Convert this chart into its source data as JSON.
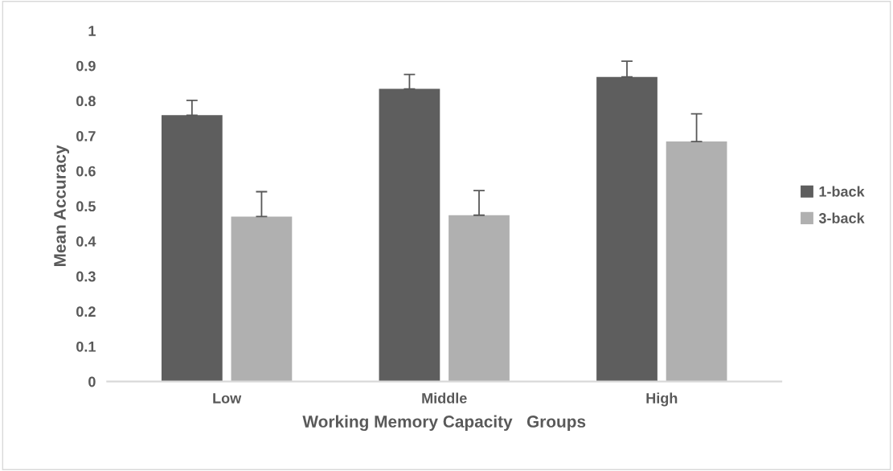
{
  "chart_data": {
    "type": "bar",
    "xlabel": "Working Memory Capacity   Groups",
    "ylabel": "Mean Accuracy",
    "categories": [
      "Low",
      "Middle",
      "High"
    ],
    "series": [
      {
        "name": "1-back",
        "color": "#5e5e5e",
        "values": [
          0.759,
          0.834,
          0.868
        ],
        "errors": [
          [
            0.759,
            0.801
          ],
          [
            0.834,
            0.875
          ],
          [
            0.868,
            0.913
          ]
        ]
      },
      {
        "name": "3-back",
        "color": "#b0b0b0",
        "values": [
          0.47,
          0.474,
          0.684
        ],
        "errors": [
          [
            0.47,
            0.541
          ],
          [
            0.474,
            0.544
          ],
          [
            0.684,
            0.763
          ]
        ]
      }
    ],
    "ylim": [
      0,
      1
    ],
    "yticks": [
      0,
      0.1,
      0.2,
      0.3,
      0.4,
      0.5,
      0.6,
      0.7,
      0.8,
      0.9,
      1
    ],
    "grid": false,
    "legend": "right"
  }
}
